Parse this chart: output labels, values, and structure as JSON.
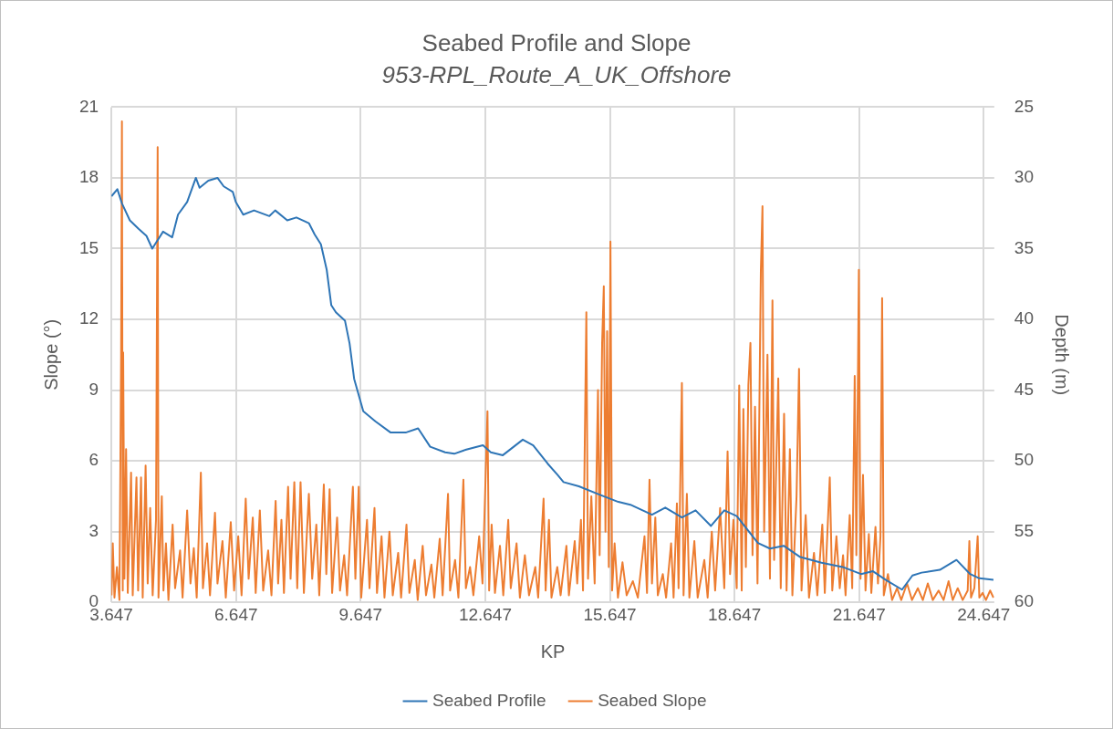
{
  "chart_data": {
    "type": "line",
    "title": "Seabed Profile and Slope",
    "subtitle": "953-RPL_Route_A_UK_Offshore",
    "xlabel": "KP",
    "ylabel": "Slope (°)",
    "y2label": "Depth (m)",
    "xlim": [
      3.647,
      24.9
    ],
    "xticks": [
      3.647,
      6.647,
      9.647,
      12.647,
      15.647,
      18.647,
      21.647,
      24.647
    ],
    "ylim": [
      0,
      21
    ],
    "yticks": [
      0,
      3,
      6,
      9,
      12,
      15,
      18,
      21
    ],
    "y2lim": [
      60,
      25
    ],
    "y2ticks": [
      25,
      30,
      35,
      40,
      45,
      50,
      55,
      60
    ],
    "grid": true,
    "legend": "bottom",
    "series": [
      {
        "name": "Seabed Slope",
        "color": "#ed7d31",
        "x": [
          3.65,
          3.68,
          3.72,
          3.78,
          3.84,
          3.88,
          3.9,
          3.92,
          3.93,
          3.96,
          4.0,
          4.04,
          4.12,
          4.16,
          4.25,
          4.29,
          4.36,
          4.4,
          4.47,
          4.52,
          4.58,
          4.64,
          4.72,
          4.76,
          4.78,
          4.86,
          4.9,
          4.96,
          5.02,
          5.12,
          5.18,
          5.3,
          5.36,
          5.47,
          5.55,
          5.63,
          5.7,
          5.8,
          5.85,
          5.95,
          6.02,
          6.14,
          6.2,
          6.32,
          6.4,
          6.52,
          6.6,
          6.7,
          6.78,
          6.88,
          6.95,
          7.05,
          7.12,
          7.22,
          7.3,
          7.42,
          7.5,
          7.6,
          7.66,
          7.74,
          7.8,
          7.9,
          7.96,
          8.05,
          8.12,
          8.2,
          8.28,
          8.4,
          8.48,
          8.58,
          8.65,
          8.76,
          8.82,
          8.9,
          8.96,
          9.08,
          9.15,
          9.25,
          9.32,
          9.46,
          9.52,
          9.6,
          9.66,
          9.8,
          9.86,
          9.98,
          10.04,
          10.15,
          10.22,
          10.34,
          10.42,
          10.55,
          10.62,
          10.75,
          10.82,
          10.95,
          11.02,
          11.14,
          11.22,
          11.35,
          11.42,
          11.55,
          11.62,
          11.75,
          11.8,
          11.92,
          12.0,
          12.12,
          12.18,
          12.28,
          12.36,
          12.5,
          12.58,
          12.7,
          12.74,
          12.8,
          12.88,
          13.0,
          13.08,
          13.2,
          13.26,
          13.4,
          13.48,
          13.6,
          13.7,
          13.85,
          13.92,
          14.05,
          14.1,
          14.18,
          14.24,
          14.38,
          14.46,
          14.6,
          14.66,
          14.8,
          14.86,
          14.95,
          15.0,
          15.08,
          15.12,
          15.2,
          15.28,
          15.36,
          15.4,
          15.46,
          15.5,
          15.54,
          15.58,
          15.62,
          15.66,
          15.7,
          15.76,
          15.84,
          15.95,
          16.05,
          16.2,
          16.32,
          16.48,
          16.54,
          16.6,
          16.66,
          16.74,
          16.8,
          16.92,
          17.0,
          17.12,
          17.18,
          17.26,
          17.3,
          17.38,
          17.42,
          17.5,
          17.56,
          17.68,
          17.76,
          17.92,
          18.0,
          18.1,
          18.18,
          18.3,
          18.4,
          18.48,
          18.54,
          18.62,
          18.7,
          18.76,
          18.82,
          18.86,
          18.92,
          18.98,
          19.03,
          19.08,
          19.14,
          19.2,
          19.28,
          19.32,
          19.36,
          19.44,
          19.5,
          19.56,
          19.6,
          19.7,
          19.76,
          19.84,
          19.9,
          19.98,
          20.04,
          20.14,
          20.2,
          20.26,
          20.36,
          20.44,
          20.56,
          20.64,
          20.76,
          20.82,
          20.94,
          21.0,
          21.1,
          21.18,
          21.26,
          21.32,
          21.42,
          21.48,
          21.54,
          21.58,
          21.64,
          21.68,
          21.74,
          21.8,
          21.88,
          21.94,
          22.04,
          22.1,
          22.16,
          22.2,
          22.24,
          22.34,
          22.44,
          22.56,
          22.66,
          22.8,
          22.92,
          23.06,
          23.18,
          23.3,
          23.42,
          23.56,
          23.68,
          23.8,
          23.9,
          24.02,
          24.14,
          24.26,
          24.3,
          24.34,
          24.42,
          24.5,
          24.54,
          24.62,
          24.7,
          24.8,
          24.88
        ],
        "values": [
          0.3,
          2.5,
          0.2,
          1.5,
          0.1,
          10.4,
          20.4,
          0.5,
          10.6,
          1.0,
          6.5,
          0.4,
          5.5,
          0.3,
          5.3,
          0.5,
          5.3,
          0.2,
          5.8,
          0.8,
          4.0,
          0.3,
          3.5,
          19.3,
          0.2,
          4.5,
          0.5,
          2.5,
          0.1,
          3.3,
          0.6,
          2.2,
          0.2,
          3.9,
          0.8,
          2.3,
          0.2,
          5.5,
          0.6,
          2.5,
          0.3,
          3.8,
          0.8,
          2.6,
          0.2,
          3.4,
          0.5,
          2.8,
          0.3,
          4.4,
          1.0,
          3.6,
          0.4,
          3.9,
          0.5,
          2.2,
          0.3,
          4.3,
          0.8,
          3.5,
          0.4,
          4.9,
          1.0,
          5.1,
          0.6,
          5.1,
          0.4,
          4.6,
          1.0,
          3.3,
          0.3,
          5.0,
          1.2,
          4.8,
          0.4,
          3.6,
          0.5,
          2.0,
          0.3,
          4.9,
          1.0,
          4.9,
          0.2,
          3.5,
          0.6,
          4.0,
          0.4,
          2.8,
          0.2,
          3.0,
          0.3,
          2.1,
          0.2,
          3.3,
          0.4,
          1.8,
          0.1,
          2.4,
          0.3,
          1.6,
          0.2,
          2.7,
          0.3,
          4.6,
          0.5,
          1.8,
          0.2,
          5.2,
          0.6,
          1.5,
          0.3,
          2.8,
          0.8,
          8.1,
          0.5,
          3.3,
          0.4,
          2.4,
          0.3,
          3.5,
          0.6,
          2.5,
          0.2,
          2.0,
          0.3,
          1.5,
          0.2,
          4.4,
          0.5,
          3.5,
          0.2,
          1.5,
          0.3,
          2.4,
          0.3,
          2.6,
          0.8,
          3.5,
          0.5,
          12.3,
          1.0,
          4.5,
          0.8,
          9.0,
          2.0,
          11.0,
          13.4,
          3.0,
          11.5,
          1.5,
          15.3,
          0.5,
          2.5,
          0.2,
          1.7,
          0.3,
          0.9,
          0.2,
          2.8,
          0.4,
          5.2,
          0.8,
          3.6,
          0.3,
          1.2,
          0.2,
          2.5,
          0.2,
          4.2,
          0.6,
          9.3,
          0.3,
          4.6,
          0.2,
          2.6,
          0.2,
          1.8,
          0.2,
          3.0,
          0.5,
          4.0,
          0.6,
          6.4,
          1.2,
          3.5,
          0.6,
          9.2,
          0.5,
          8.2,
          1.5,
          9.2,
          11.0,
          2.0,
          8.3,
          0.8,
          14.0,
          16.8,
          3.0,
          10.5,
          1.0,
          12.8,
          1.8,
          9.5,
          0.6,
          8.0,
          0.5,
          6.5,
          0.3,
          4.5,
          9.9,
          0.5,
          3.7,
          0.2,
          2.1,
          0.3,
          3.3,
          0.4,
          5.3,
          0.5,
          2.8,
          0.6,
          2.0,
          0.3,
          3.7,
          0.6,
          9.6,
          2.0,
          14.1,
          1.0,
          5.4,
          0.5,
          2.9,
          0.4,
          3.2,
          0.8,
          2.8,
          12.9,
          0.3,
          1.2,
          0.1,
          0.6,
          0.1,
          0.8,
          0.1,
          0.6,
          0.1,
          0.8,
          0.1,
          0.5,
          0.1,
          0.9,
          0.1,
          0.6,
          0.1,
          0.5,
          2.6,
          0.2,
          0.6,
          2.8,
          0.2,
          0.4,
          0.1,
          0.5,
          0.2
        ]
      },
      {
        "name": "Seabed Profile",
        "color": "#2e75b6",
        "axis": "y2",
        "x": [
          3.65,
          3.79,
          3.9,
          4.09,
          4.3,
          4.49,
          4.63,
          4.89,
          5.11,
          5.25,
          5.47,
          5.68,
          5.77,
          5.98,
          6.2,
          6.35,
          6.57,
          6.64,
          6.82,
          7.08,
          7.45,
          7.59,
          7.88,
          8.1,
          8.4,
          8.54,
          8.69,
          8.83,
          8.94,
          9.05,
          9.27,
          9.38,
          9.49,
          9.71,
          10.0,
          10.37,
          10.73,
          11.03,
          11.32,
          11.68,
          11.9,
          12.19,
          12.59,
          12.78,
          13.07,
          13.55,
          13.8,
          14.15,
          14.39,
          14.53,
          14.9,
          15.41,
          15.85,
          16.14,
          16.66,
          16.98,
          17.38,
          17.71,
          18.08,
          18.4,
          18.7,
          19.21,
          19.5,
          19.83,
          20.23,
          20.74,
          21.25,
          21.69,
          21.98,
          22.28,
          22.68,
          22.93,
          23.15,
          23.59,
          23.99,
          24.32,
          24.54,
          24.88
        ],
        "values": [
          31.3,
          30.8,
          31.8,
          33.0,
          33.6,
          34.1,
          35.0,
          33.8,
          34.2,
          32.6,
          31.7,
          30.0,
          30.7,
          30.2,
          30.0,
          30.6,
          31.0,
          31.7,
          32.6,
          32.3,
          32.7,
          32.3,
          33.0,
          32.8,
          33.2,
          34.0,
          34.7,
          36.5,
          39.0,
          39.5,
          40.1,
          41.7,
          44.2,
          46.5,
          47.2,
          48.0,
          48.0,
          47.7,
          49.0,
          49.4,
          49.5,
          49.2,
          48.9,
          49.4,
          49.6,
          48.5,
          48.9,
          50.2,
          51.0,
          51.5,
          51.8,
          52.4,
          52.9,
          53.1,
          53.8,
          53.3,
          54.0,
          53.5,
          54.6,
          53.5,
          53.9,
          55.8,
          56.2,
          56.0,
          56.8,
          57.2,
          57.5,
          58.0,
          57.8,
          58.4,
          59.1,
          58.1,
          57.9,
          57.7,
          57.0,
          58.0,
          58.3,
          58.4
        ]
      }
    ]
  }
}
